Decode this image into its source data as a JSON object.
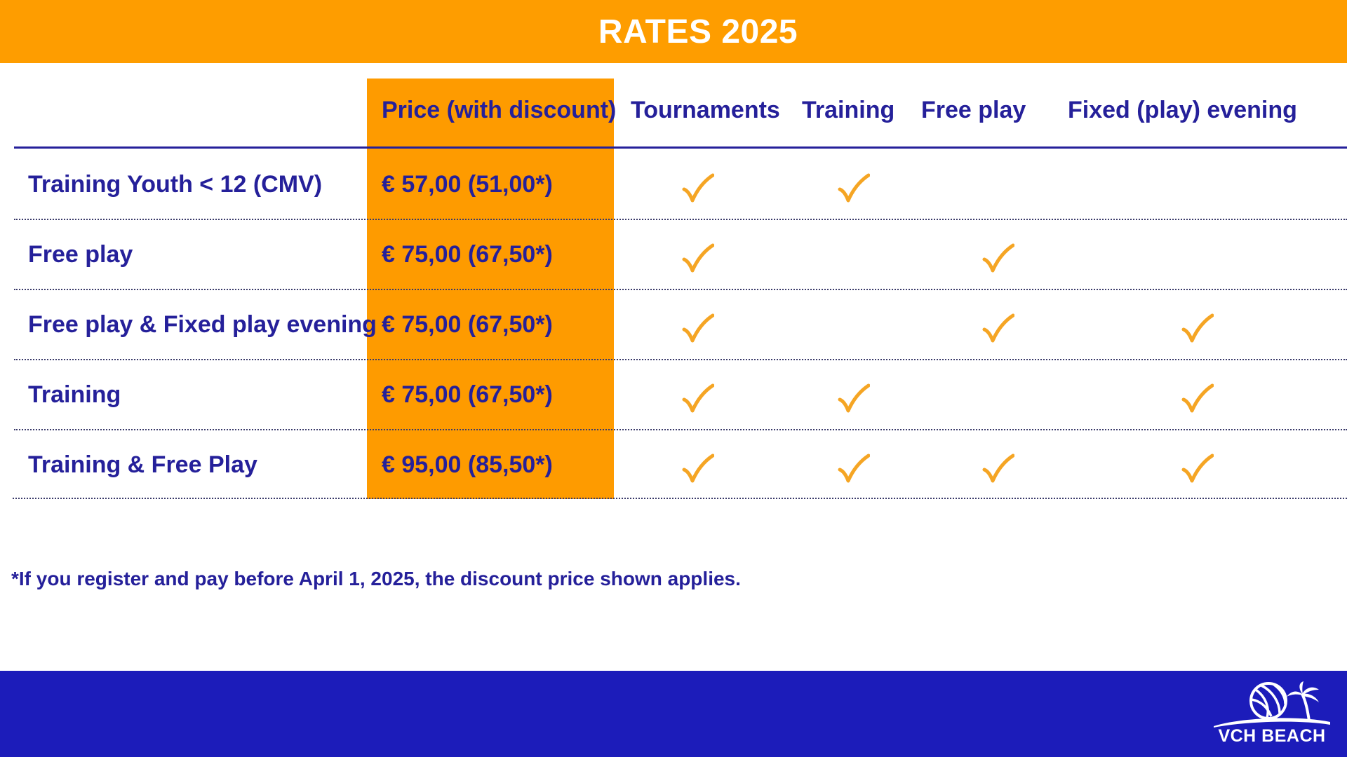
{
  "header": {
    "title": "RATES 2025"
  },
  "table": {
    "columns": [
      "Price (with discount)",
      "Tournaments",
      "Training",
      "Free play",
      "Fixed (play) evening"
    ],
    "rows": [
      {
        "label": "Training Youth < 12 (CMV)",
        "price": "€ 57,00 (51,00*)",
        "tournaments": true,
        "training": true,
        "free_play": false,
        "fixed_evening": false
      },
      {
        "label": "Free play",
        "price": "€ 75,00 (67,50*)",
        "tournaments": true,
        "training": false,
        "free_play": true,
        "fixed_evening": false
      },
      {
        "label": "Free play & Fixed play evening",
        "price": "€ 75,00 (67,50*)",
        "tournaments": true,
        "training": false,
        "free_play": true,
        "fixed_evening": true
      },
      {
        "label": "Training",
        "price": "€ 75,00 (67,50*)",
        "tournaments": true,
        "training": true,
        "free_play": false,
        "fixed_evening": true
      },
      {
        "label": "Training & Free Play",
        "price": "€ 95,00 (85,50*)",
        "tournaments": true,
        "training": true,
        "free_play": true,
        "fixed_evening": true
      }
    ]
  },
  "footnote": "*If you register and pay before April 1, 2025, the discount price shown applies.",
  "logo": {
    "text": "VCH BEACH",
    "icon": "volleyball-palm-icon"
  },
  "colors": {
    "orange": "#fe9d00",
    "navy": "#25209a",
    "blue_bar": "#1c1cba",
    "check": "#f5a524"
  },
  "icons": {
    "check": "check-icon"
  }
}
